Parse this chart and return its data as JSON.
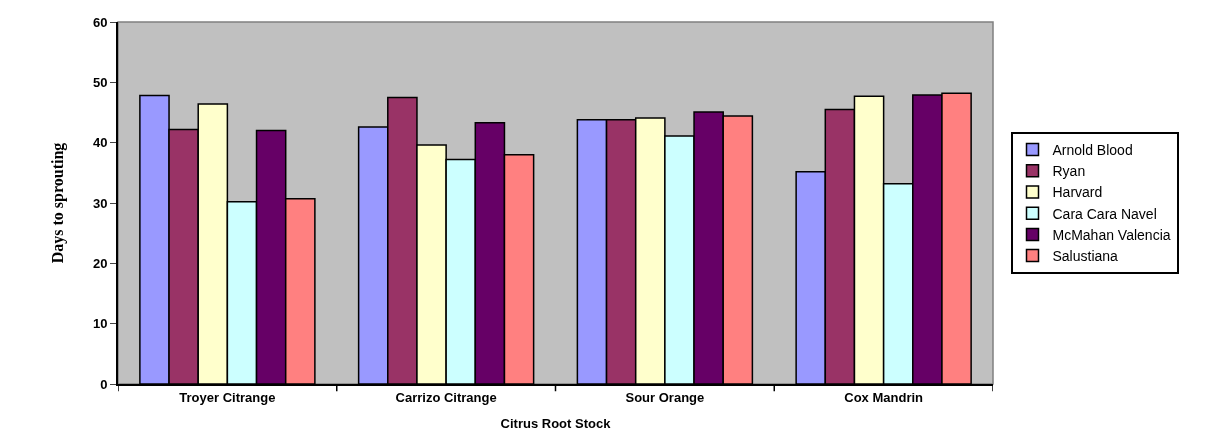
{
  "chart_data": {
    "type": "bar",
    "categories": [
      "Troyer Citrange",
      "Carrizo Citrange",
      "Sour Orange",
      "Cox Mandrin"
    ],
    "xlabel": "Citrus Root Stock",
    "ylabel": "Days to sprouting",
    "ylim": [
      0,
      60
    ],
    "yticks": [
      0,
      10,
      20,
      30,
      40,
      50,
      60
    ],
    "grid": false,
    "legend": "right",
    "series": [
      {
        "name": "Arnold Blood",
        "color": "#9999ff",
        "values": [
          47.8,
          42.6,
          43.8,
          35.2
        ]
      },
      {
        "name": "Ryan",
        "color": "#993366",
        "values": [
          42.2,
          47.5,
          43.8,
          45.5
        ]
      },
      {
        "name": "Harvard",
        "color": "#ffffcc",
        "values": [
          46.4,
          39.6,
          44.1,
          47.7
        ]
      },
      {
        "name": "Cara Cara Navel",
        "color": "#ccffff",
        "values": [
          30.2,
          37.2,
          41.1,
          33.2
        ]
      },
      {
        "name": "McMahan Valencia",
        "color": "#660066",
        "values": [
          42.0,
          43.3,
          45.1,
          47.9
        ]
      },
      {
        "name": "Salustiana",
        "color": "#ff8080",
        "values": [
          30.7,
          38.0,
          44.4,
          48.2
        ]
      }
    ]
  }
}
